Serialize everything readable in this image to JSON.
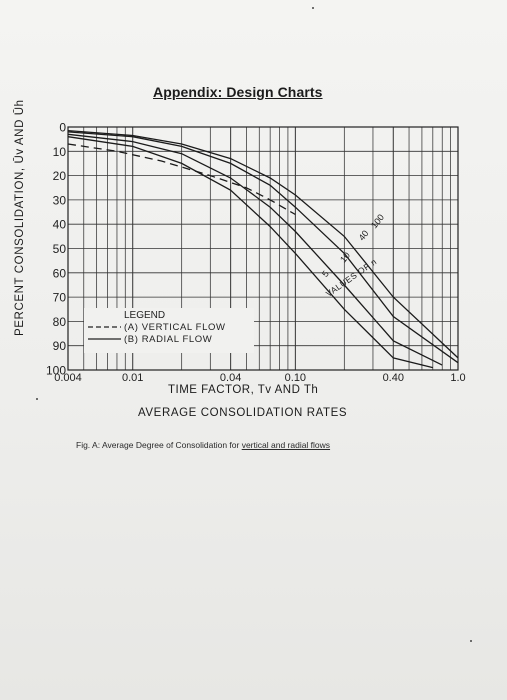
{
  "page": {
    "title": "Appendix: Design Charts",
    "caption_prefix": "Fig. A: Average Degree of Consolidation for ",
    "caption_link": "vertical and radial flows"
  },
  "chart_data": {
    "type": "line",
    "ylabel": "PERCENT CONSOLIDATION, Ūv AND Ūh",
    "xlabel_line1": "TIME FACTOR, Tv AND Th",
    "xlabel_line2": "AVERAGE CONSOLIDATION RATES",
    "x_scale": "log",
    "xlim": [
      0.004,
      1.0
    ],
    "ylim": [
      0,
      100
    ],
    "y_inverted": true,
    "grid": true,
    "x_ticks": [
      {
        "value": 0.004,
        "label": "0.004"
      },
      {
        "value": 0.01,
        "label": "0.01"
      },
      {
        "value": 0.04,
        "label": "0.04"
      },
      {
        "value": 0.1,
        "label": "0.10"
      },
      {
        "value": 0.4,
        "label": "0.40"
      },
      {
        "value": 1.0,
        "label": "1.0"
      }
    ],
    "y_ticks": [
      {
        "value": 0,
        "label": "0"
      },
      {
        "value": 10,
        "label": "10"
      },
      {
        "value": 20,
        "label": "20"
      },
      {
        "value": 30,
        "label": "30"
      },
      {
        "value": 40,
        "label": "40"
      },
      {
        "value": 50,
        "label": "50"
      },
      {
        "value": 60,
        "label": "60"
      },
      {
        "value": 70,
        "label": "70"
      },
      {
        "value": 80,
        "label": "80"
      },
      {
        "value": 90,
        "label": "90"
      },
      {
        "value": 100,
        "label": "100"
      }
    ],
    "legend": {
      "title": "LEGEND",
      "placement": "bottom-left",
      "items": [
        {
          "style": "dashed",
          "label": "(A)  VERTICAL FLOW"
        },
        {
          "style": "solid",
          "label": "(B)  RADIAL FLOW"
        }
      ]
    },
    "n_annotation": "VALUES OF n",
    "series": [
      {
        "name": "(A) VERTICAL FLOW",
        "style": "dashed",
        "x": [
          0.004,
          0.008,
          0.015,
          0.03,
          0.05,
          0.07,
          0.1
        ],
        "y": [
          7,
          10,
          14,
          20,
          25,
          30,
          36
        ]
      },
      {
        "name": "5",
        "style": "solid",
        "x": [
          0.004,
          0.01,
          0.02,
          0.04,
          0.07,
          0.1,
          0.2,
          0.4,
          0.7
        ],
        "y": [
          4,
          8,
          15,
          26,
          41,
          52,
          75,
          95,
          99
        ]
      },
      {
        "name": "10",
        "style": "solid",
        "x": [
          0.004,
          0.01,
          0.02,
          0.04,
          0.07,
          0.1,
          0.2,
          0.4,
          0.8
        ],
        "y": [
          3,
          6,
          11,
          21,
          33,
          43,
          65,
          88,
          98
        ]
      },
      {
        "name": "40",
        "style": "solid",
        "x": [
          0.004,
          0.01,
          0.02,
          0.04,
          0.07,
          0.1,
          0.2,
          0.4,
          1.0
        ],
        "y": [
          2,
          4,
          8,
          15,
          24,
          33,
          52,
          78,
          97
        ]
      },
      {
        "name": "100",
        "style": "solid",
        "x": [
          0.004,
          0.01,
          0.02,
          0.04,
          0.07,
          0.1,
          0.2,
          0.4,
          1.0
        ],
        "y": [
          1.5,
          3.5,
          7,
          13,
          21,
          28,
          45,
          70,
          95
        ]
      }
    ]
  }
}
